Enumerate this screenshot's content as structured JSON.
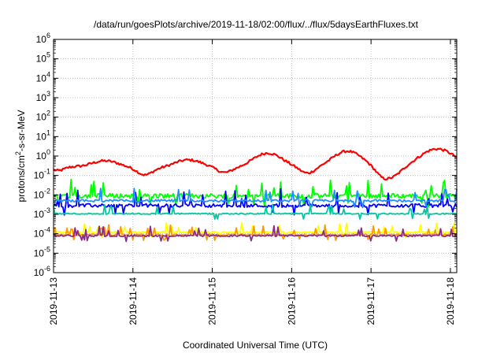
{
  "chart_data": {
    "type": "line",
    "title": "/data/run/goesPlots/archive/2019-11-18/02:00/flux/../flux/5daysEarthFluxes.txt",
    "xlabel": "Coordinated Universal Time (UTC)",
    "ylabel": {
      "prefix": "protons/cm",
      "sup": "2",
      "suffix": "-s-sr-MeV"
    },
    "yscale": "log",
    "ylim_exponents": [
      -6,
      6
    ],
    "y_ticks": [
      {
        "base": "10",
        "exp": "6"
      },
      {
        "base": "10",
        "exp": "5"
      },
      {
        "base": "10",
        "exp": "4"
      },
      {
        "base": "10",
        "exp": "3"
      },
      {
        "base": "10",
        "exp": "2"
      },
      {
        "base": "10",
        "exp": "1"
      },
      {
        "base": "10",
        "exp": "0"
      },
      {
        "base": "10",
        "exp": "-1"
      },
      {
        "base": "10",
        "exp": "-2"
      },
      {
        "base": "10",
        "exp": "-3"
      },
      {
        "base": "10",
        "exp": "-4"
      },
      {
        "base": "10",
        "exp": "-5"
      },
      {
        "base": "10",
        "exp": "-6"
      }
    ],
    "x_ticks": [
      "2019-11-13",
      "2019-11-14",
      "2019-11-15",
      "2019-11-16",
      "2019-11-17",
      "2019-11-18"
    ],
    "xlim_days": [
      0,
      5.08
    ],
    "grid": true,
    "legend": "none",
    "series": [
      {
        "color": "#ff0000",
        "base": -0.7,
        "amp": 0.55,
        "noise": 0.12,
        "spikes": 0.0,
        "peaks": [
          [
            0.0,
            0.25
          ],
          [
            0.65,
            0.45
          ],
          [
            1.7,
            0.5
          ],
          [
            2.7,
            0.85
          ],
          [
            3.7,
            0.95
          ],
          [
            4.75,
            0.75
          ],
          [
            4.98,
            0.5
          ]
        ],
        "troughs": [
          [
            0.05,
            -0.3
          ],
          [
            1.15,
            -0.3
          ],
          [
            2.15,
            -0.2
          ],
          [
            3.2,
            -0.25
          ],
          [
            4.15,
            -0.45
          ],
          [
            4.3,
            -0.3
          ]
        ]
      },
      {
        "color": "#00ff00",
        "base": -2.05,
        "amp": 0.0,
        "noise": 0.25,
        "spikes": 0.9,
        "peaks": [],
        "troughs": []
      },
      {
        "color": "#0000ff",
        "base": -2.55,
        "amp": 0.0,
        "noise": 0.18,
        "spikes": 0.8,
        "peaks": [],
        "troughs": []
      },
      {
        "color": "#1e90ff",
        "base": -2.3,
        "amp": 0.0,
        "noise": 0.12,
        "spikes": 0.6,
        "peaks": [],
        "troughs": []
      },
      {
        "color": "#00c8a0",
        "base": -2.97,
        "amp": 0.0,
        "noise": 0.06,
        "spikes": 0.5,
        "peaks": [],
        "troughs": []
      },
      {
        "color": "#ffff00",
        "base": -3.92,
        "amp": 0.0,
        "noise": 0.08,
        "spikes": 0.5,
        "peaks": [],
        "troughs": []
      },
      {
        "color": "#ff9900",
        "base": -4.05,
        "amp": 0.0,
        "noise": 0.08,
        "spikes": 0.5,
        "peaks": [],
        "troughs": []
      },
      {
        "color": "#8b2a8a",
        "base": -4.1,
        "amp": 0.0,
        "noise": 0.08,
        "spikes": 0.5,
        "peaks": [],
        "troughs": []
      }
    ]
  }
}
